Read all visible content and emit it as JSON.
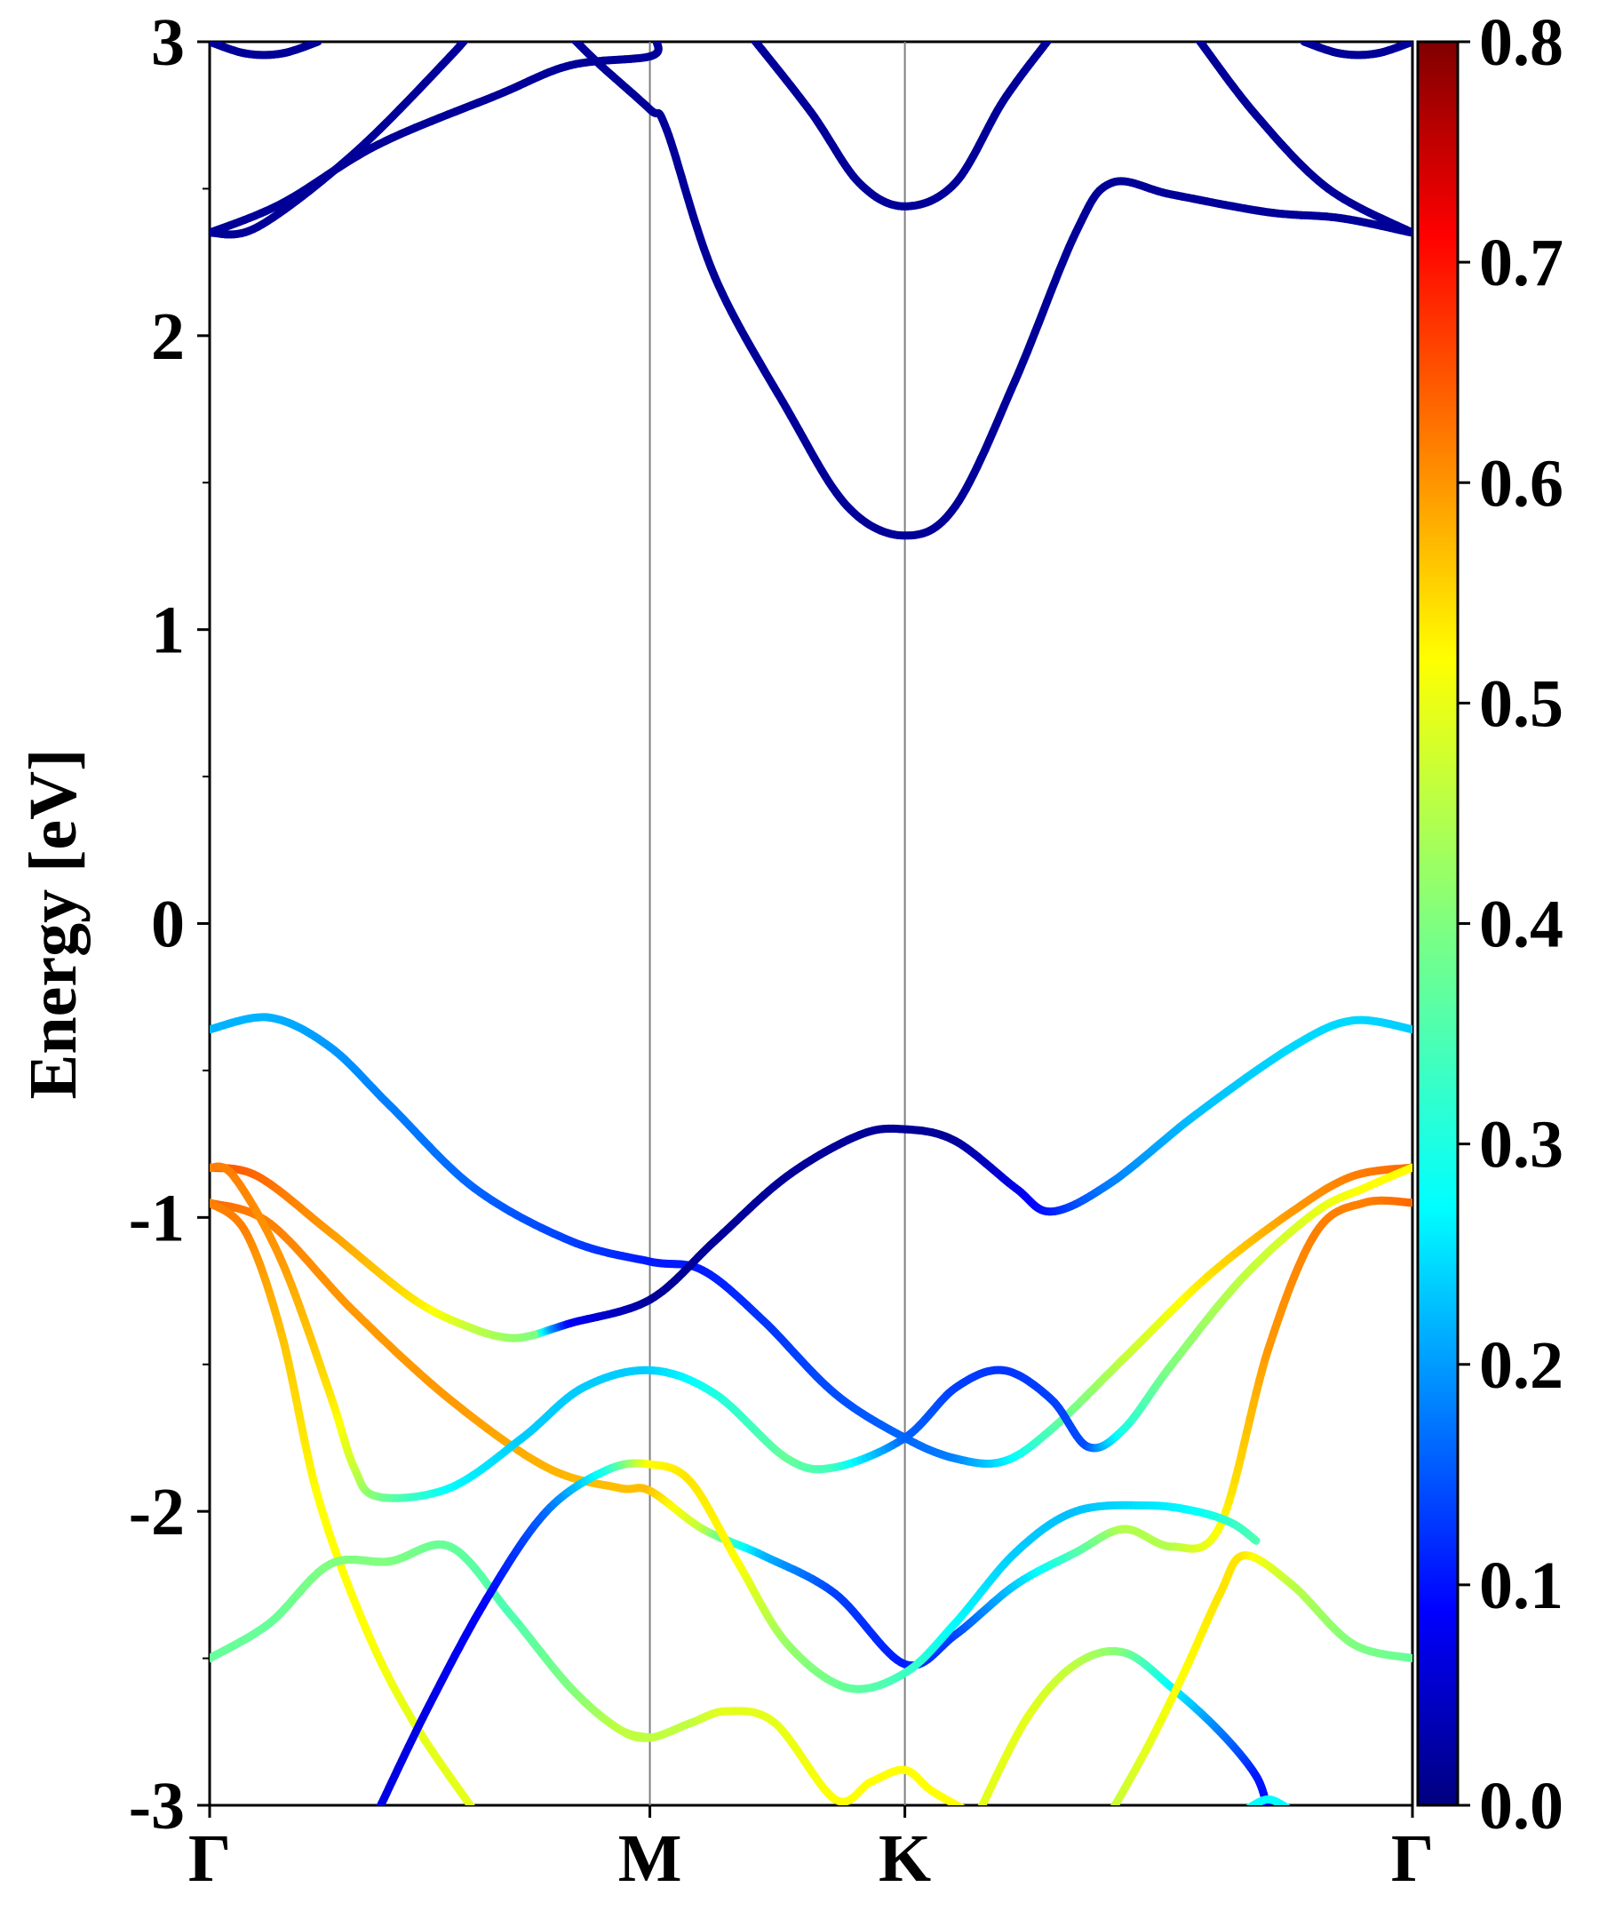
{
  "chart_data": {
    "type": "line",
    "title": "",
    "xlabel": "",
    "ylabel": "Energy [eV]",
    "ylim": [
      -3,
      3
    ],
    "x_range": [
      0,
      1
    ],
    "yticks": [
      "3",
      "2",
      "1",
      "0",
      "-1",
      "-2",
      "-3"
    ],
    "ytick_values": [
      3,
      2,
      1,
      0,
      -1,
      -2,
      -3
    ],
    "high_symmetry_points": [
      {
        "label": "Γ",
        "x": 0.0
      },
      {
        "label": "M",
        "x": 0.366
      },
      {
        "label": "K",
        "x": 0.578
      },
      {
        "label": "Γ",
        "x": 1.0
      }
    ],
    "colorbar": {
      "colormap": "jet",
      "range": [
        0.0,
        0.8
      ],
      "tick_values": [
        0.0,
        0.1,
        0.2,
        0.3,
        0.4,
        0.5,
        0.6,
        0.7,
        0.8
      ],
      "tick_labels": [
        "0.0",
        "0.1",
        "0.2",
        "0.3",
        "0.4",
        "0.5",
        "0.6",
        "0.7",
        "0.8"
      ]
    },
    "bands": [
      {
        "id": "cb-top-left",
        "points": [
          [
            0.0,
            2.35,
            0.02
          ],
          [
            0.04,
            2.37,
            0.02
          ],
          [
            0.12,
            2.62,
            0.02
          ],
          [
            0.2,
            2.95,
            0.02
          ],
          [
            0.22,
            3.05,
            0.02
          ]
        ]
      },
      {
        "id": "cb-gamma-m",
        "points": [
          [
            0.0,
            2.35,
            0.02
          ],
          [
            0.06,
            2.45,
            0.02
          ],
          [
            0.14,
            2.65,
            0.02
          ],
          [
            0.24,
            2.82,
            0.02
          ],
          [
            0.3,
            2.92,
            0.02
          ],
          [
            0.366,
            2.95,
            0.02
          ],
          [
            0.372,
            3.0,
            0.02
          ]
        ]
      },
      {
        "id": "cb-m-k-upper",
        "points": [
          [
            0.3,
            3.02,
            0.02
          ],
          [
            0.325,
            2.92,
            0.02
          ],
          [
            0.366,
            2.77,
            0.02
          ],
          [
            0.38,
            2.7,
            0.02
          ],
          [
            0.42,
            2.2,
            0.02
          ],
          [
            0.48,
            1.75,
            0.02
          ],
          [
            0.53,
            1.42,
            0.02
          ],
          [
            0.578,
            1.32,
            0.02
          ],
          [
            0.62,
            1.42,
            0.02
          ],
          [
            0.67,
            1.85,
            0.02
          ],
          [
            0.72,
            2.35,
            0.02
          ],
          [
            0.75,
            2.52,
            0.02
          ],
          [
            0.8,
            2.48,
            0.02
          ],
          [
            0.88,
            2.42,
            0.02
          ],
          [
            0.94,
            2.4,
            0.02
          ],
          [
            1.0,
            2.35,
            0.02
          ]
        ]
      },
      {
        "id": "cb-k-lower",
        "points": [
          [
            0.45,
            3.02,
            0.02
          ],
          [
            0.5,
            2.76,
            0.02
          ],
          [
            0.54,
            2.52,
            0.02
          ],
          [
            0.578,
            2.44,
            0.02
          ],
          [
            0.62,
            2.52,
            0.02
          ],
          [
            0.66,
            2.8,
            0.02
          ],
          [
            0.7,
            3.02,
            0.02
          ]
        ]
      },
      {
        "id": "cb-right",
        "points": [
          [
            0.82,
            3.02,
            0.02
          ],
          [
            0.87,
            2.75,
            0.02
          ],
          [
            0.93,
            2.5,
            0.02
          ],
          [
            1.0,
            2.35,
            0.02
          ]
        ]
      },
      {
        "id": "cb-gamma-cap-left",
        "points": [
          [
            0.0,
            3.0,
            0.02
          ],
          [
            0.03,
            2.96,
            0.02
          ],
          [
            0.06,
            2.96,
            0.02
          ],
          [
            0.09,
            3.0,
            0.02
          ]
        ]
      },
      {
        "id": "cb-gamma-cap-right",
        "points": [
          [
            0.91,
            3.0,
            0.02
          ],
          [
            0.94,
            2.96,
            0.02
          ],
          [
            0.97,
            2.96,
            0.02
          ],
          [
            1.0,
            3.0,
            0.02
          ]
        ]
      },
      {
        "id": "vb1",
        "points": [
          [
            0.0,
            -0.36,
            0.24
          ],
          [
            0.05,
            -0.32,
            0.24
          ],
          [
            0.1,
            -0.42,
            0.22
          ],
          [
            0.15,
            -0.62,
            0.2
          ],
          [
            0.22,
            -0.9,
            0.18
          ],
          [
            0.3,
            -1.08,
            0.15
          ],
          [
            0.366,
            -1.15,
            0.12
          ],
          [
            0.41,
            -1.18,
            0.12
          ],
          [
            0.46,
            -1.35,
            0.14
          ],
          [
            0.52,
            -1.6,
            0.16
          ],
          [
            0.578,
            -1.75,
            0.18
          ],
          [
            0.62,
            -1.82,
            0.2
          ],
          [
            0.66,
            -1.83,
            0.28
          ],
          [
            0.7,
            -1.72,
            0.36
          ],
          [
            0.76,
            -1.48,
            0.45
          ],
          [
            0.83,
            -1.2,
            0.52
          ],
          [
            0.9,
            -0.98,
            0.58
          ],
          [
            0.95,
            -0.86,
            0.6
          ],
          [
            1.0,
            -0.83,
            0.62
          ]
        ]
      },
      {
        "id": "vb2",
        "points": [
          [
            0.27,
            -1.4,
            0.45
          ],
          [
            0.3,
            -1.36,
            0.1
          ],
          [
            0.366,
            -1.28,
            0.02
          ],
          [
            0.42,
            -1.08,
            0.02
          ],
          [
            0.48,
            -0.86,
            0.02
          ],
          [
            0.54,
            -0.72,
            0.02
          ],
          [
            0.578,
            -0.7,
            0.02
          ],
          [
            0.62,
            -0.74,
            0.02
          ],
          [
            0.67,
            -0.9,
            0.08
          ],
          [
            0.7,
            -0.98,
            0.12
          ],
          [
            0.75,
            -0.88,
            0.2
          ],
          [
            0.82,
            -0.65,
            0.25
          ],
          [
            0.9,
            -0.42,
            0.27
          ],
          [
            0.95,
            -0.33,
            0.27
          ],
          [
            1.0,
            -0.36,
            0.26
          ]
        ]
      },
      {
        "id": "vb3",
        "points": [
          [
            0.0,
            -0.83,
            0.64
          ],
          [
            0.04,
            -0.86,
            0.62
          ],
          [
            0.1,
            -1.05,
            0.58
          ],
          [
            0.17,
            -1.28,
            0.52
          ],
          [
            0.22,
            -1.38,
            0.45
          ],
          [
            0.25,
            -1.41,
            0.42
          ],
          [
            0.27,
            -1.4,
            0.4
          ]
        ]
      },
      {
        "id": "vb4",
        "points": [
          [
            0.0,
            -0.95,
            0.62
          ],
          [
            0.05,
            -1.02,
            0.6
          ],
          [
            0.12,
            -1.32,
            0.58
          ],
          [
            0.2,
            -1.62,
            0.58
          ],
          [
            0.28,
            -1.85,
            0.56
          ],
          [
            0.34,
            -1.92,
            0.55
          ],
          [
            0.366,
            -1.93,
            0.55
          ],
          [
            0.41,
            -2.06,
            0.45
          ],
          [
            0.46,
            -2.15,
            0.25
          ],
          [
            0.52,
            -2.28,
            0.15
          ],
          [
            0.578,
            -2.52,
            0.12
          ],
          [
            0.62,
            -2.42,
            0.15
          ],
          [
            0.67,
            -2.25,
            0.26
          ],
          [
            0.72,
            -2.14,
            0.36
          ],
          [
            0.76,
            -2.06,
            0.44
          ],
          [
            0.8,
            -2.12,
            0.44
          ],
          [
            0.84,
            -2.05,
            0.5
          ],
          [
            0.88,
            -1.45,
            0.58
          ],
          [
            0.92,
            -1.05,
            0.6
          ],
          [
            0.96,
            -0.95,
            0.6
          ],
          [
            1.0,
            -0.95,
            0.62
          ]
        ]
      },
      {
        "id": "vb5",
        "points": [
          [
            0.0,
            -0.83,
            0.6
          ],
          [
            0.02,
            -0.86,
            0.6
          ],
          [
            0.06,
            -1.15,
            0.58
          ],
          [
            0.1,
            -1.6,
            0.52
          ],
          [
            0.12,
            -1.85,
            0.46
          ],
          [
            0.14,
            -1.95,
            0.4
          ],
          [
            0.2,
            -1.92,
            0.3
          ],
          [
            0.26,
            -1.75,
            0.26
          ],
          [
            0.31,
            -1.58,
            0.26
          ],
          [
            0.366,
            -1.52,
            0.26
          ],
          [
            0.42,
            -1.6,
            0.32
          ],
          [
            0.48,
            -1.82,
            0.38
          ],
          [
            0.52,
            -1.85,
            0.35
          ],
          [
            0.578,
            -1.75,
            0.18
          ],
          [
            0.62,
            -1.58,
            0.15
          ],
          [
            0.66,
            -1.52,
            0.14
          ],
          [
            0.7,
            -1.62,
            0.15
          ],
          [
            0.73,
            -1.78,
            0.16
          ],
          [
            0.76,
            -1.72,
            0.32
          ],
          [
            0.8,
            -1.5,
            0.4
          ],
          [
            0.86,
            -1.2,
            0.45
          ],
          [
            0.92,
            -0.98,
            0.48
          ],
          [
            0.96,
            -0.9,
            0.5
          ],
          [
            1.0,
            -0.83,
            0.5
          ]
        ]
      },
      {
        "id": "vb6",
        "points": [
          [
            0.0,
            -0.95,
            0.6
          ],
          [
            0.03,
            -1.05,
            0.6
          ],
          [
            0.06,
            -1.4,
            0.55
          ],
          [
            0.09,
            -1.95,
            0.5
          ],
          [
            0.13,
            -2.4,
            0.5
          ],
          [
            0.17,
            -2.72,
            0.48
          ],
          [
            0.22,
            -3.02,
            0.48
          ]
        ]
      },
      {
        "id": "vb7",
        "points": [
          [
            0.0,
            -2.5,
            0.38
          ],
          [
            0.05,
            -2.38,
            0.38
          ],
          [
            0.1,
            -2.18,
            0.4
          ],
          [
            0.15,
            -2.17,
            0.4
          ],
          [
            0.2,
            -2.12,
            0.38
          ],
          [
            0.25,
            -2.35,
            0.36
          ],
          [
            0.3,
            -2.6,
            0.4
          ],
          [
            0.34,
            -2.74,
            0.45
          ],
          [
            0.366,
            -2.77,
            0.45
          ],
          [
            0.4,
            -2.72,
            0.45
          ],
          [
            0.43,
            -2.68,
            0.48
          ],
          [
            0.47,
            -2.72,
            0.48
          ],
          [
            0.52,
            -2.98,
            0.5
          ],
          [
            0.55,
            -2.92,
            0.5
          ],
          [
            0.578,
            -2.88,
            0.5
          ],
          [
            0.6,
            -2.95,
            0.5
          ],
          [
            0.63,
            -3.02,
            0.5
          ]
        ]
      },
      {
        "id": "vb8",
        "points": [
          [
            0.0,
            -2.5,
            0.38
          ],
          [
            0.05,
            -2.38,
            0.38
          ],
          [
            0.1,
            -2.18,
            0.4
          ],
          [
            0.15,
            -2.17,
            0.4
          ],
          [
            0.2,
            -2.12,
            0.38
          ],
          [
            0.25,
            -2.35,
            0.36
          ],
          [
            0.3,
            -2.6,
            0.4
          ],
          [
            0.34,
            -2.74,
            0.45
          ],
          [
            0.366,
            -2.77,
            0.45
          ]
        ]
      },
      {
        "id": "vb9",
        "points": [
          [
            0.14,
            -3.02,
            0.08
          ],
          [
            0.18,
            -2.68,
            0.08
          ],
          [
            0.23,
            -2.3,
            0.1
          ],
          [
            0.28,
            -2.0,
            0.18
          ],
          [
            0.33,
            -1.86,
            0.32
          ],
          [
            0.366,
            -1.84,
            0.5
          ],
          [
            0.4,
            -1.9,
            0.52
          ],
          [
            0.44,
            -2.18,
            0.5
          ],
          [
            0.48,
            -2.45,
            0.42
          ],
          [
            0.53,
            -2.6,
            0.38
          ],
          [
            0.578,
            -2.55,
            0.35
          ],
          [
            0.62,
            -2.38,
            0.3
          ],
          [
            0.67,
            -2.14,
            0.26
          ],
          [
            0.72,
            -2.0,
            0.25
          ],
          [
            0.78,
            -1.98,
            0.28
          ],
          [
            0.82,
            -2.0,
            0.3
          ],
          [
            0.85,
            -2.04,
            0.34
          ],
          [
            0.87,
            -2.1,
            0.36
          ]
        ]
      },
      {
        "id": "vb10",
        "points": [
          [
            0.64,
            -3.02,
            0.48
          ],
          [
            0.68,
            -2.7,
            0.48
          ],
          [
            0.72,
            -2.52,
            0.45
          ],
          [
            0.76,
            -2.48,
            0.4
          ],
          [
            0.8,
            -2.6,
            0.3
          ],
          [
            0.84,
            -2.75,
            0.2
          ],
          [
            0.87,
            -2.9,
            0.12
          ],
          [
            0.88,
            -3.02,
            0.1
          ]
        ]
      },
      {
        "id": "vb11",
        "points": [
          [
            0.75,
            -3.02,
            0.45
          ],
          [
            0.78,
            -2.8,
            0.48
          ],
          [
            0.81,
            -2.55,
            0.5
          ],
          [
            0.84,
            -2.28,
            0.52
          ],
          [
            0.86,
            -2.15,
            0.52
          ],
          [
            0.9,
            -2.25,
            0.45
          ],
          [
            0.95,
            -2.45,
            0.4
          ],
          [
            1.0,
            -2.5,
            0.38
          ]
        ]
      },
      {
        "id": "vb-bottom-right",
        "points": [
          [
            0.86,
            -3.02,
            0.3
          ],
          [
            0.88,
            -2.98,
            0.3
          ],
          [
            0.9,
            -3.02,
            0.3
          ]
        ]
      }
    ]
  }
}
